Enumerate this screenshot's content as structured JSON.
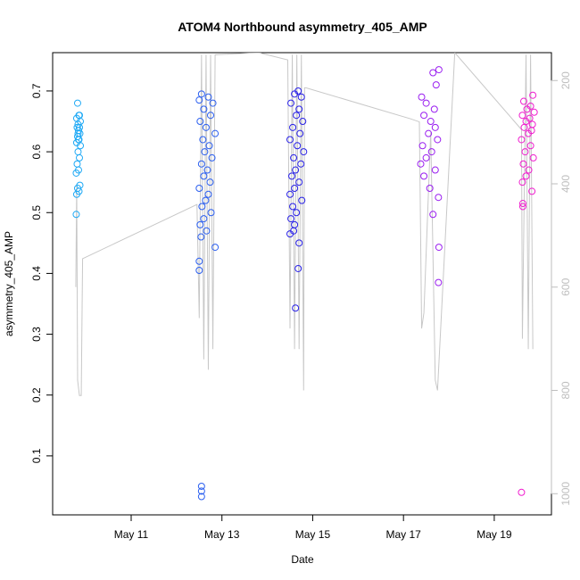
{
  "chart_data": {
    "type": "scatter",
    "title": "ATOM4 Northbound asymmetry_405_AMP",
    "x_label": "Date",
    "y_label": "asymmetry_405_AMP",
    "xlim": [
      9.27,
      20.26
    ],
    "xticks": [
      {
        "value": 11,
        "label": "May 11"
      },
      {
        "value": 13,
        "label": "May 13"
      },
      {
        "value": 15,
        "label": "May 15"
      },
      {
        "value": 17,
        "label": "May 17"
      },
      {
        "value": 19,
        "label": "May 19"
      }
    ],
    "ylim": [
      0.003,
      0.763
    ],
    "yticks": [
      0.1,
      0.2,
      0.3,
      0.4,
      0.5,
      0.6,
      0.7
    ],
    "y2lim": [
      1041,
      146
    ],
    "y2ticks": [
      200,
      400,
      600,
      800,
      1000
    ],
    "y2_color": "#bebebe",
    "series": [
      {
        "type": "line",
        "axis": "y2",
        "color": "#c8c8c8",
        "x": [
          9.78,
          9.8,
          9.82,
          9.86,
          9.9,
          9.93,
          12.45,
          12.5,
          12.55,
          12.6,
          12.65,
          12.7,
          12.75,
          12.8,
          12.85,
          13.81,
          14.45,
          14.5,
          14.55,
          14.6,
          14.65,
          14.7,
          14.75,
          14.8,
          14.82,
          14.85,
          17.15,
          17.35,
          17.4,
          17.45,
          17.6,
          17.7,
          17.75,
          18.13,
          19.6,
          19.62,
          19.7,
          19.75,
          19.8,
          19.85
        ],
        "values": [
          600,
          400,
          780,
          810,
          810,
          545,
          440,
          660,
          150,
          740,
          150,
          760,
          150,
          720,
          150,
          146,
          160,
          680,
          150,
          720,
          150,
          720,
          150,
          800,
          214,
          214,
          274,
          280,
          680,
          650,
          300,
          780,
          800,
          146,
          295,
          700,
          150,
          720,
          150,
          720
        ]
      },
      {
        "color": "#1fa9f5",
        "x": [
          9.82,
          9.85,
          9.8,
          9.88,
          9.83,
          9.86,
          9.81,
          9.84,
          9.87,
          9.82,
          9.85,
          9.8,
          9.88,
          9.83,
          9.86,
          9.81,
          9.84,
          9.79,
          9.87,
          9.82,
          9.85,
          9.8,
          9.79,
          9.86,
          9.83,
          9.84
        ],
        "values": [
          0.68,
          0.66,
          0.655,
          0.65,
          0.645,
          0.64,
          0.64,
          0.635,
          0.63,
          0.625,
          0.62,
          0.615,
          0.61,
          0.6,
          0.59,
          0.58,
          0.57,
          0.565,
          0.545,
          0.54,
          0.535,
          0.53,
          0.497,
          0.66,
          0.63,
          0.62
        ]
      },
      {
        "color": "#2b5ff0",
        "x": [
          12.55,
          12.7,
          12.5,
          12.8,
          12.6,
          12.75,
          12.52,
          12.65,
          12.85,
          12.58,
          12.72,
          12.62,
          12.78,
          12.55,
          12.68,
          12.6,
          12.74,
          12.5,
          12.7,
          12.64,
          12.56,
          12.76,
          12.6,
          12.52,
          12.66,
          12.54,
          12.85,
          12.5,
          12.5,
          12.55,
          12.55,
          12.55
        ],
        "values": [
          0.695,
          0.69,
          0.685,
          0.68,
          0.67,
          0.66,
          0.65,
          0.64,
          0.63,
          0.62,
          0.61,
          0.6,
          0.59,
          0.58,
          0.57,
          0.56,
          0.55,
          0.54,
          0.53,
          0.52,
          0.51,
          0.5,
          0.49,
          0.48,
          0.47,
          0.46,
          0.443,
          0.42,
          0.405,
          0.05,
          0.042,
          0.033
        ]
      },
      {
        "color": "#2a22e8",
        "x": [
          14.68,
          14.6,
          14.75,
          14.52,
          14.7,
          14.64,
          14.78,
          14.56,
          14.72,
          14.5,
          14.66,
          14.8,
          14.58,
          14.74,
          14.62,
          14.54,
          14.7,
          14.6,
          14.5,
          14.76,
          14.56,
          14.64,
          14.52,
          14.6,
          14.58,
          14.5,
          14.7,
          14.68,
          14.62
        ],
        "values": [
          0.7,
          0.695,
          0.69,
          0.68,
          0.67,
          0.66,
          0.65,
          0.64,
          0.63,
          0.62,
          0.61,
          0.6,
          0.59,
          0.58,
          0.57,
          0.56,
          0.55,
          0.54,
          0.53,
          0.52,
          0.51,
          0.5,
          0.49,
          0.48,
          0.47,
          0.465,
          0.45,
          0.408,
          0.343
        ]
      },
      {
        "color": "#9a1ef0",
        "x": [
          17.78,
          17.65,
          17.72,
          17.4,
          17.5,
          17.68,
          17.45,
          17.6,
          17.7,
          17.55,
          17.75,
          17.42,
          17.62,
          17.5,
          17.38,
          17.7,
          17.45,
          17.58,
          17.77,
          17.65,
          17.78,
          17.77
        ],
        "values": [
          0.735,
          0.73,
          0.71,
          0.69,
          0.68,
          0.67,
          0.66,
          0.65,
          0.64,
          0.63,
          0.62,
          0.61,
          0.6,
          0.59,
          0.58,
          0.57,
          0.56,
          0.54,
          0.525,
          0.497,
          0.443,
          0.385
        ]
      },
      {
        "color": "#f01ecf",
        "x": [
          19.85,
          19.65,
          19.8,
          19.72,
          19.88,
          19.62,
          19.78,
          19.7,
          19.84,
          19.66,
          19.82,
          19.75,
          19.6,
          19.8,
          19.68,
          19.86,
          19.64,
          19.76,
          19.7,
          19.62,
          19.83,
          19.63,
          19.63,
          19.6
        ],
        "values": [
          0.693,
          0.683,
          0.675,
          0.67,
          0.665,
          0.66,
          0.655,
          0.65,
          0.645,
          0.64,
          0.635,
          0.63,
          0.62,
          0.61,
          0.6,
          0.59,
          0.58,
          0.57,
          0.56,
          0.55,
          0.535,
          0.515,
          0.51,
          0.04
        ]
      }
    ]
  }
}
